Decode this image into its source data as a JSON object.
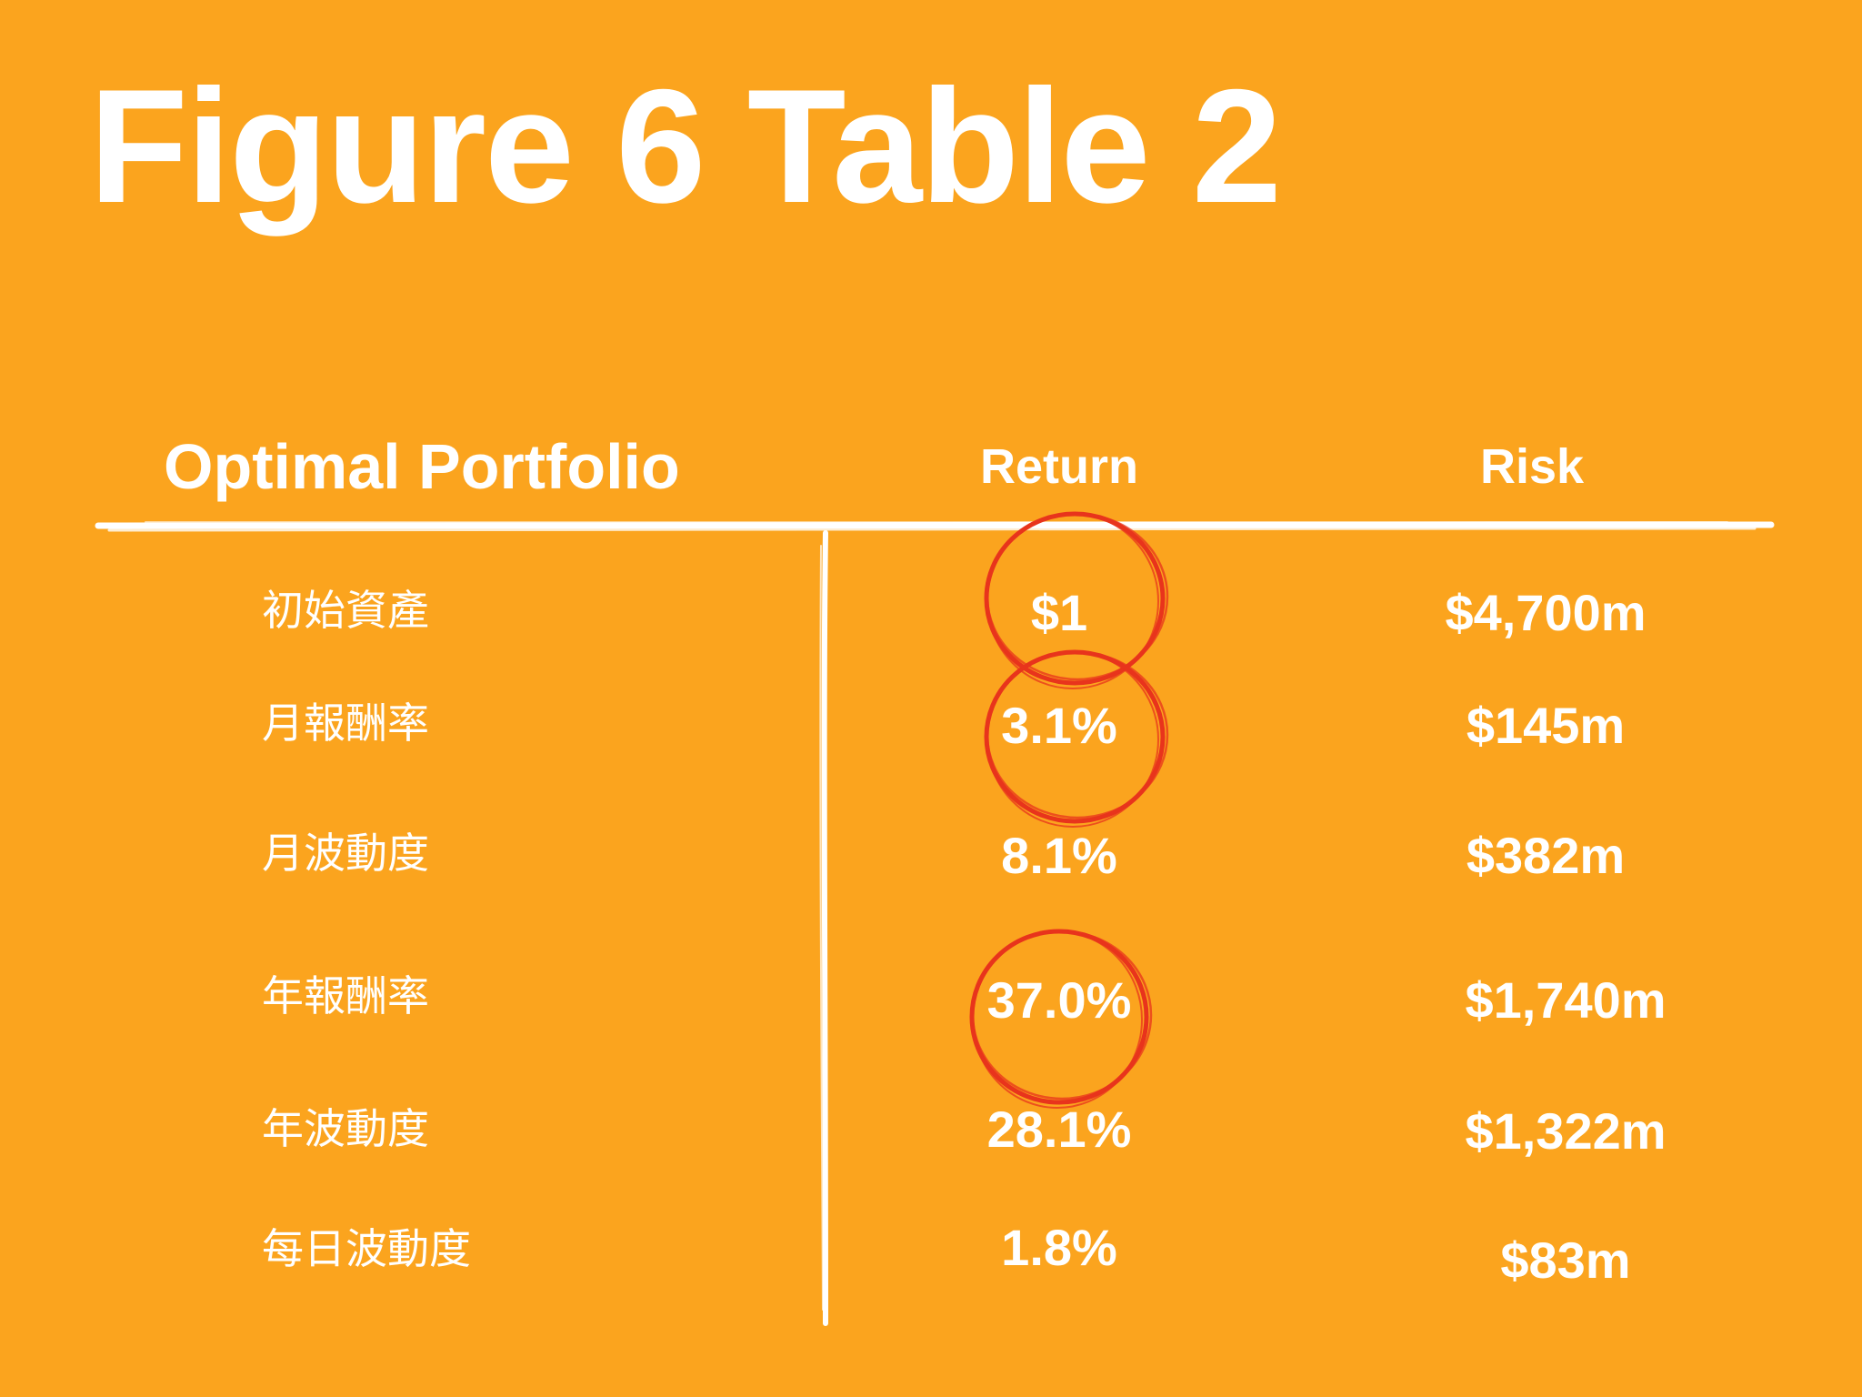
{
  "title": "Figure 6 Table 2",
  "table": {
    "header": {
      "label": "Optimal Portfolio",
      "return": "Return",
      "risk": "Risk"
    },
    "rows": [
      {
        "label": "初始資產",
        "return": "$1",
        "risk": "$4,700m",
        "circled": true
      },
      {
        "label": "月報酬率",
        "return": "3.1%",
        "risk": "$145m",
        "circled": true
      },
      {
        "label": "月波動度",
        "return": "8.1%",
        "risk": "$382m",
        "circled": false
      },
      {
        "label": "年報酬率",
        "return": "37.0%",
        "risk": "$1,740m",
        "circled": true
      },
      {
        "label": "年波動度",
        "return": "28.1%",
        "risk": "$1,322m",
        "circled": false
      },
      {
        "label": "每日波動度",
        "return": "1.8%",
        "risk": "$83m",
        "circled": false
      }
    ]
  },
  "colors": {
    "background": "#FBA41E",
    "text": "#FFFFFF",
    "circle": "#E8341C"
  }
}
